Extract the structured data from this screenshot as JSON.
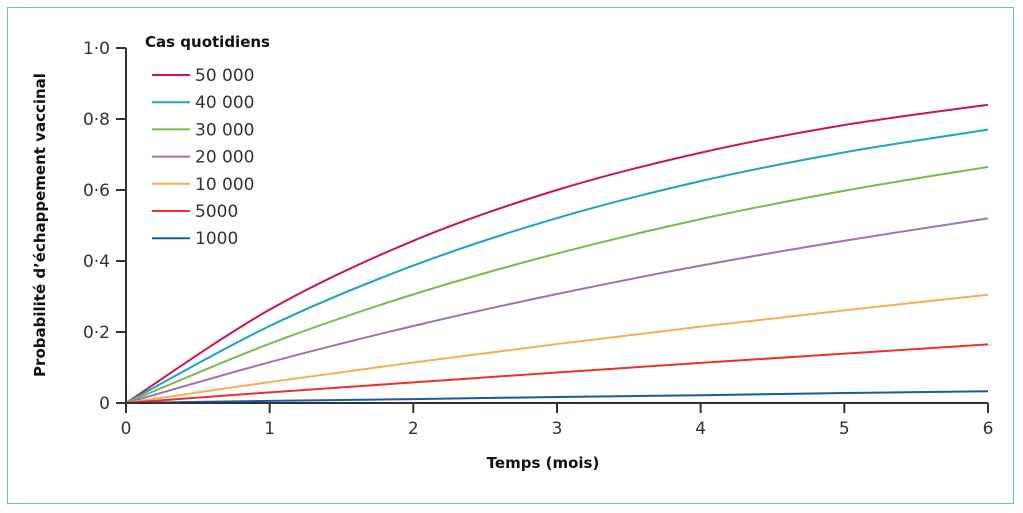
{
  "chart_data": {
    "type": "line",
    "title": "",
    "xlabel": "Temps (mois)",
    "ylabel": "Probabilité d’échappement vaccinal",
    "xlim": [
      0,
      6
    ],
    "ylim": [
      0,
      1
    ],
    "x_ticks": [
      0,
      1,
      2,
      3,
      4,
      5,
      6
    ],
    "x_tick_labels": [
      "0",
      "1",
      "2",
      "3",
      "4",
      "5",
      "6"
    ],
    "y_ticks": [
      0,
      0.2,
      0.4,
      0.6,
      0.8,
      1.0
    ],
    "y_tick_labels": [
      "0",
      "0·2",
      "0·4",
      "0·6",
      "0·8",
      "1·0"
    ],
    "grid": false,
    "legend": {
      "title": "Cas quotidiens",
      "placement": "top-left"
    },
    "x": [
      0,
      1,
      2,
      3,
      4,
      5,
      6
    ],
    "series": [
      {
        "name": "50 000",
        "color": "#c8184a",
        "values": [
          0,
          0.263,
          0.457,
          0.6,
          0.705,
          0.783,
          0.84
        ]
      },
      {
        "name": "40 000",
        "color": "#1aa3c9",
        "values": [
          0,
          0.217,
          0.387,
          0.521,
          0.625,
          0.706,
          0.77
        ]
      },
      {
        "name": "30 000",
        "color": "#7cb84a",
        "values": [
          0,
          0.167,
          0.306,
          0.421,
          0.518,
          0.598,
          0.665
        ]
      },
      {
        "name": "20 000",
        "color": "#9d72b8",
        "values": [
          0,
          0.115,
          0.217,
          0.307,
          0.387,
          0.457,
          0.52
        ]
      },
      {
        "name": "10 000",
        "color": "#fbab52",
        "values": [
          0,
          0.059,
          0.114,
          0.166,
          0.215,
          0.261,
          0.305
        ]
      },
      {
        "name": "5000",
        "color": "#ec2f2f",
        "values": [
          0,
          0.03,
          0.058,
          0.086,
          0.113,
          0.139,
          0.165
        ]
      },
      {
        "name": "1000",
        "color": "#1d5aa3",
        "values": [
          0,
          0.006,
          0.011,
          0.017,
          0.022,
          0.028,
          0.033
        ]
      }
    ]
  }
}
